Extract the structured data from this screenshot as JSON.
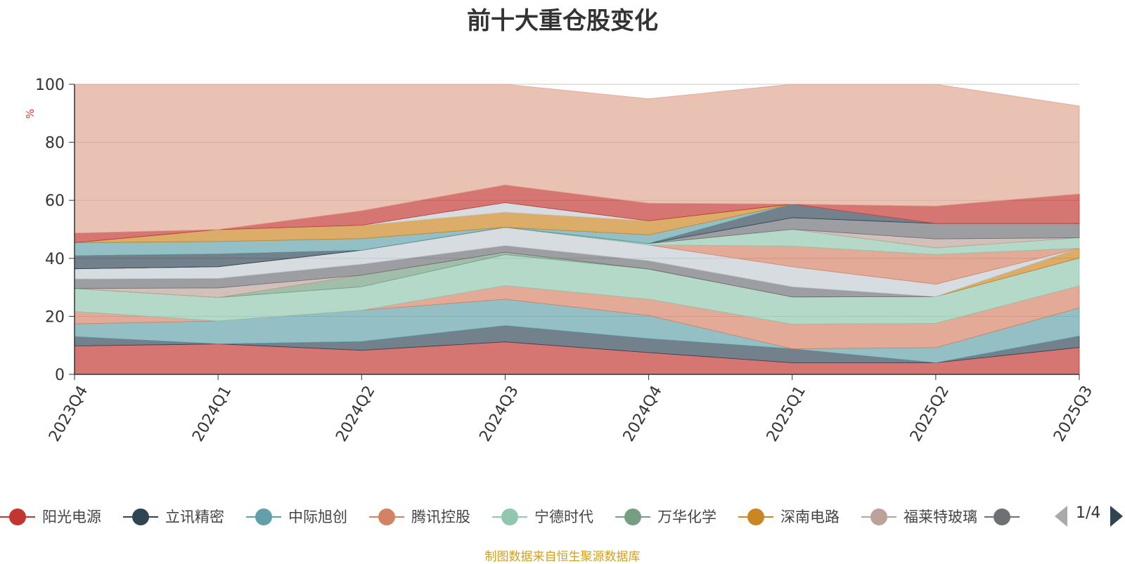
{
  "title": "前十大重仓股变化",
  "source_note": "制图数据来自恒生聚源数据库",
  "legend_page": "1/4",
  "chart_data": {
    "type": "area",
    "stacked": true,
    "title": "前十大重仓股变化",
    "xlabel": "",
    "ylabel": "%",
    "ylim": [
      0,
      100
    ],
    "yticks": [
      "0",
      "20",
      "40",
      "60",
      "80",
      "100"
    ],
    "categories": [
      "2023Q4",
      "2024Q1",
      "2024Q2",
      "2024Q3",
      "2024Q4",
      "2025Q1",
      "2025Q2",
      "2025Q3"
    ],
    "series": [
      {
        "name": "阳光电源",
        "color": "#c23531",
        "values": [
          9.8,
          10.5,
          8.3,
          11.2,
          7.5,
          4.0,
          4.0,
          9.3
        ]
      },
      {
        "name": "立讯精密",
        "color": "#2f4554",
        "values": [
          3.2,
          0.0,
          3.0,
          5.6,
          4.8,
          4.8,
          0.0,
          3.9
        ]
      },
      {
        "name": "中际旭创",
        "color": "#61a0a8",
        "values": [
          4.4,
          7.9,
          10.8,
          9.1,
          8.0,
          0.0,
          5.2,
          9.7
        ]
      },
      {
        "name": "腾讯控股",
        "color": "#d48265",
        "values": [
          4.3,
          0.0,
          0.0,
          4.7,
          5.6,
          8.5,
          8.4,
          7.6
        ]
      },
      {
        "name": "宁德时代",
        "color": "#91c7ae",
        "values": [
          7.9,
          8.1,
          8.1,
          10.7,
          10.4,
          9.4,
          9.2,
          9.6
        ]
      },
      {
        "name": "万华化学",
        "color": "#749f83",
        "values": [
          0.0,
          0.0,
          4.0,
          0.8,
          0.0,
          0.0,
          0.0,
          0.0
        ]
      },
      {
        "name": "深南电路",
        "color": "#ca8622",
        "values": [
          0.0,
          0.0,
          0.0,
          0.0,
          0.0,
          0.0,
          0.0,
          3.4
        ]
      },
      {
        "name": "福莱特玻璃",
        "color": "#bda29a",
        "values": [
          0.0,
          3.3,
          0.0,
          0.0,
          0.0,
          0.0,
          0.0,
          0.0
        ]
      },
      {
        "name": "",
        "color": "#6e7074",
        "values": [
          3.3,
          3.3,
          3.8,
          2.3,
          2.9,
          3.5,
          0.0,
          0.0
        ]
      },
      {
        "name": "",
        "color": "#c4ccd3",
        "values": [
          3.5,
          4.0,
          4.8,
          6.3,
          5.4,
          6.9,
          4.3,
          0.0
        ]
      },
      {
        "name": "",
        "color": "#d48265",
        "values": [
          0.0,
          0.0,
          0.0,
          0.0,
          0.0,
          7.1,
          10.2,
          0.0
        ]
      },
      {
        "name": "",
        "color": "#91c7ae",
        "values": [
          0.0,
          0.0,
          0.0,
          0.0,
          0.5,
          5.8,
          2.3,
          3.6
        ]
      },
      {
        "name": "",
        "color": "#bda29a",
        "values": [
          0.0,
          0.0,
          0.0,
          0.0,
          0.0,
          0.0,
          3.1,
          0.0
        ]
      },
      {
        "name": "",
        "color": "#6e7074",
        "values": [
          0.0,
          0.0,
          0.0,
          0.0,
          0.0,
          4.0,
          5.3,
          4.9
        ]
      },
      {
        "name": "",
        "color": "#2f4554",
        "values": [
          4.5,
          4.4,
          0.0,
          0.0,
          0.0,
          4.7,
          0.0,
          0.0
        ]
      },
      {
        "name": "",
        "color": "#61a0a8",
        "values": [
          4.5,
          4.3,
          4.0,
          0.0,
          3.0,
          0.0,
          0.0,
          0.0
        ]
      },
      {
        "name": "",
        "color": "#ca8622",
        "values": [
          0.0,
          4.1,
          4.6,
          5.2,
          4.8,
          0.0,
          0.0,
          0.0
        ]
      },
      {
        "name": "",
        "color": "#c4ccd3",
        "values": [
          0.0,
          0.0,
          0.0,
          3.3,
          0.0,
          0.0,
          0.0,
          0.0
        ]
      },
      {
        "name": "",
        "color": "#c23531",
        "values": [
          3.3,
          0.0,
          5.0,
          6.1,
          6.1,
          0.0,
          6.0,
          10.2
        ]
      },
      {
        "name": "",
        "color": "#dea591",
        "values": [
          51.3,
          50.1,
          43.6,
          34.7,
          36.0,
          41.3,
          42.0,
          30.3
        ]
      }
    ],
    "legend_position": "bottom",
    "legend_visible_count": 9,
    "grid": true
  }
}
